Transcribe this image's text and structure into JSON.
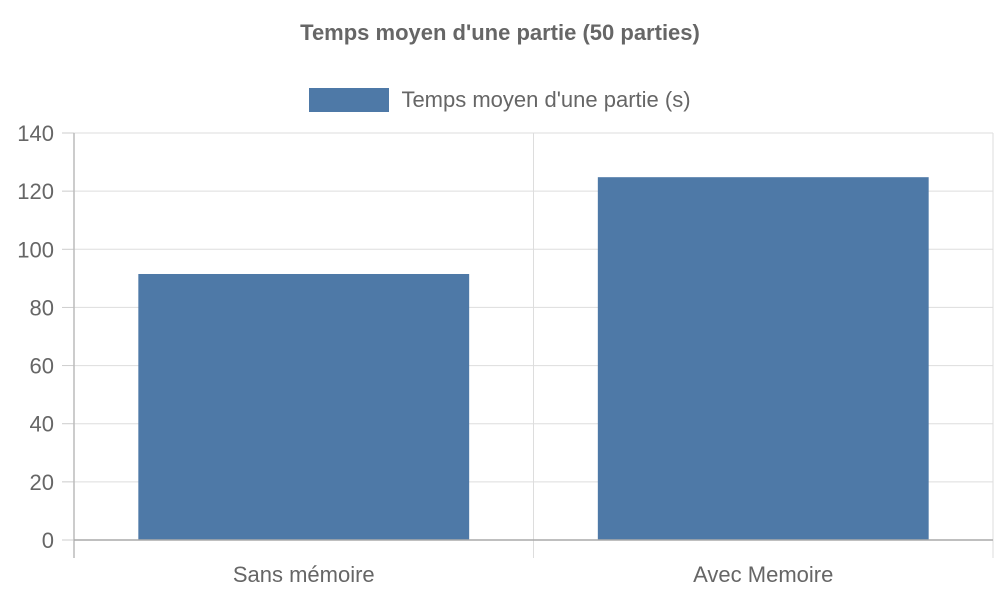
{
  "chart_data": {
    "type": "bar",
    "title": "Temps moyen d'une partie (50 parties)",
    "categories": [
      "Sans mémoire",
      "Avec Memoire"
    ],
    "series": [
      {
        "name": "Temps moyen d'une partie (s)",
        "values": [
          91.5,
          124.8
        ],
        "color": "#4e79a7"
      }
    ],
    "ylim": [
      0,
      140
    ],
    "yticks": [
      0,
      20,
      40,
      60,
      80,
      100,
      120,
      140
    ],
    "grid": true,
    "legend_position": "top"
  }
}
